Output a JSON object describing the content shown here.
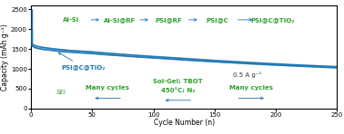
{
  "chart_data": {
    "type": "line",
    "xlabel": "Cycle Number (n)",
    "ylabel": "Capacity (mAh g⁻¹)",
    "x": [
      1,
      1,
      2,
      3,
      5,
      10,
      20,
      30,
      40,
      50,
      60,
      70,
      80,
      90,
      100,
      110,
      120,
      130,
      140,
      150,
      160,
      170,
      180,
      190,
      200,
      210,
      220,
      230,
      240,
      250
    ],
    "series": [
      {
        "values": [
          2480,
          1620,
          1608,
          1590,
          1568,
          1538,
          1500,
          1468,
          1448,
          1428,
          1402,
          1378,
          1354,
          1332,
          1312,
          1292,
          1272,
          1252,
          1232,
          1212,
          1194,
          1176,
          1158,
          1142,
          1126,
          1110,
          1096,
          1082,
          1068,
          1055
        ]
      },
      {
        "values": [
          1960,
          1570,
          1558,
          1540,
          1518,
          1490,
          1455,
          1425,
          1405,
          1385,
          1360,
          1338,
          1315,
          1295,
          1275,
          1255,
          1235,
          1215,
          1196,
          1178,
          1160,
          1143,
          1126,
          1110,
          1095,
          1080,
          1066,
          1052,
          1038,
          1025
        ]
      }
    ],
    "xlim": [
      0,
      250
    ],
    "ylim": [
      0,
      2600
    ],
    "xticks": [
      0,
      50,
      100,
      150,
      200,
      250
    ],
    "yticks": [
      0,
      500,
      1000,
      1500,
      2000,
      2500
    ],
    "annotations": [
      "PSi@C@TiO₂",
      "0.5 A g⁻¹",
      "Al-Si",
      "Al-Si@RF",
      "PSi@RF",
      "PSi@C",
      "PSi@C@TiO₂",
      "SEI",
      "Many cycles",
      "Sol-Gel; TBOT",
      "450°C; N₂",
      "Many cycles"
    ]
  }
}
